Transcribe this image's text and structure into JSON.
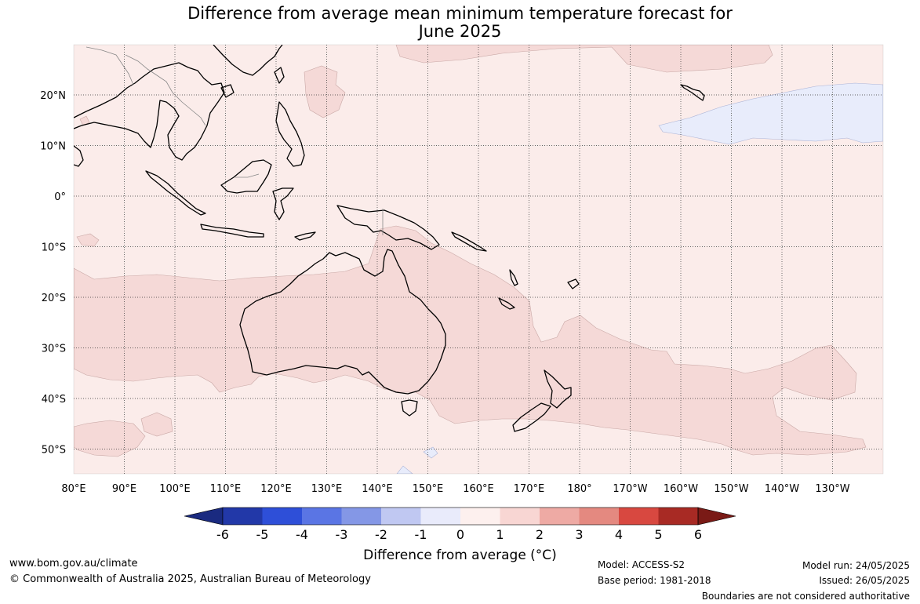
{
  "title": {
    "line1": "Difference from average mean minimum temperature forecast for",
    "line2": "June 2025"
  },
  "map": {
    "lon_labels": [
      "80°E",
      "90°E",
      "100°E",
      "110°E",
      "120°E",
      "130°E",
      "140°E",
      "150°E",
      "160°E",
      "170°E",
      "180°",
      "170°W",
      "160°W",
      "150°W",
      "140°W",
      "130°W"
    ],
    "lat_labels": [
      "20°N",
      "10°N",
      "0°",
      "10°S",
      "20°S",
      "30°S",
      "40°S",
      "50°S"
    ],
    "colors": {
      "ocean_base": "#fbecea",
      "anomaly_1_2": "#f5d9d7",
      "anomaly_neg_1_0": "#e8ecfb",
      "coast": "#000000",
      "border": "#888888",
      "grid": "#333333"
    }
  },
  "colorbar": {
    "tick_labels": [
      "-6",
      "-5",
      "-4",
      "-3",
      "-2",
      "-1",
      "0",
      "1",
      "2",
      "3",
      "4",
      "5",
      "6"
    ],
    "colors": [
      "#1a2a80",
      "#2238a8",
      "#2e4fd8",
      "#5a75e4",
      "#8497e6",
      "#c0c8f2",
      "#e9ebfb",
      "#fdf0ee",
      "#f8d6d3",
      "#eeaaa4",
      "#e48980",
      "#d84840",
      "#a82a24",
      "#7a1a16"
    ],
    "title": "Difference from average (°C)"
  },
  "footer": {
    "website": "www.bom.gov.au/climate",
    "copyright": "© Commonwealth of Australia 2025, Australian Bureau of Meteorology",
    "model": "Model: ACCESS-S2",
    "base_period": "Base period: 1981-2018",
    "model_run": "Model run: 24/05/2025",
    "issued": "Issued: 26/05/2025",
    "disclaimer": "Boundaries are not considered authoritative"
  }
}
